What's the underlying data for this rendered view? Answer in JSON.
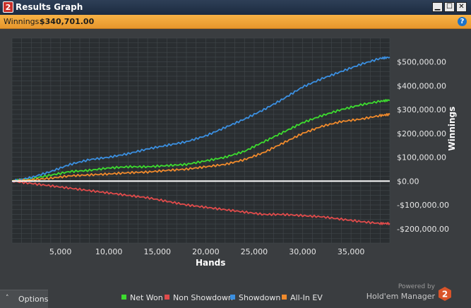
{
  "window": {
    "title": "Results Graph",
    "app_icon": "2"
  },
  "title_buttons": [
    {
      "name": "minimize",
      "glyph": "▁"
    },
    {
      "name": "maximize",
      "glyph": "☐"
    },
    {
      "name": "close",
      "glyph": "✕"
    }
  ],
  "infobar": {
    "label": "Winnings:",
    "value": "$340,701.00",
    "help_icon": "?"
  },
  "options": {
    "label": "Options",
    "chevron": "˄"
  },
  "powered": {
    "line1": "Powered by",
    "line2": "Hold'em Manager",
    "logo_digit": "2"
  },
  "colors": {
    "net_won": "#3ddc2f",
    "non_showdown": "#e04b4b",
    "showdown": "#3b8fe0",
    "all_in_ev": "#f08a2c",
    "zero_line": "#ffffff",
    "plot_bg": "#2a2e31",
    "grid": "#42484c"
  },
  "chart_data": {
    "type": "line",
    "xlabel": "Hands",
    "ylabel": "Winnings",
    "xlim": [
      0,
      39000
    ],
    "ylim": [
      -260000,
      600000
    ],
    "x_ticks": [
      5000,
      10000,
      15000,
      20000,
      25000,
      30000,
      35000
    ],
    "x_tick_labels": [
      "5,000",
      "10,000",
      "15,000",
      "20,000",
      "25,000",
      "30,000",
      "35,000"
    ],
    "y_ticks": [
      500000,
      400000,
      300000,
      200000,
      100000,
      0,
      -100000,
      -200000
    ],
    "y_tick_labels": [
      "$500,000.00",
      "$400,000.00",
      "$300,000.00",
      "$200,000.00",
      "$100,000.00",
      "$0.00",
      "-$100,000.00",
      "-$200,000.00"
    ],
    "grid": true,
    "legend_position": "bottom",
    "x": [
      0,
      2000,
      4000,
      6000,
      8000,
      10000,
      12000,
      14000,
      16000,
      18000,
      20000,
      22000,
      24000,
      26000,
      28000,
      30000,
      32000,
      34000,
      36000,
      38000,
      39000
    ],
    "series": [
      {
        "name": "Net Won",
        "values": [
          0,
          10000,
          25000,
          40000,
          45000,
          55000,
          60000,
          60000,
          65000,
          70000,
          85000,
          100000,
          125000,
          165000,
          205000,
          245000,
          275000,
          300000,
          320000,
          335000,
          340000
        ]
      },
      {
        "name": "Non Showdown",
        "values": [
          0,
          -10000,
          -20000,
          -30000,
          -40000,
          -50000,
          -60000,
          -70000,
          -85000,
          -100000,
          -110000,
          -120000,
          -130000,
          -140000,
          -140000,
          -145000,
          -150000,
          -160000,
          -170000,
          -178000,
          -178000
        ]
      },
      {
        "name": "Showdown",
        "values": [
          0,
          15000,
          40000,
          70000,
          90000,
          100000,
          115000,
          135000,
          150000,
          165000,
          190000,
          225000,
          260000,
          300000,
          345000,
          395000,
          430000,
          460000,
          490000,
          515000,
          520000
        ]
      },
      {
        "name": "All-In EV",
        "values": [
          0,
          5000,
          12000,
          22000,
          26000,
          30000,
          35000,
          38000,
          45000,
          50000,
          60000,
          70000,
          90000,
          120000,
          160000,
          200000,
          230000,
          250000,
          260000,
          275000,
          280000
        ]
      }
    ]
  }
}
